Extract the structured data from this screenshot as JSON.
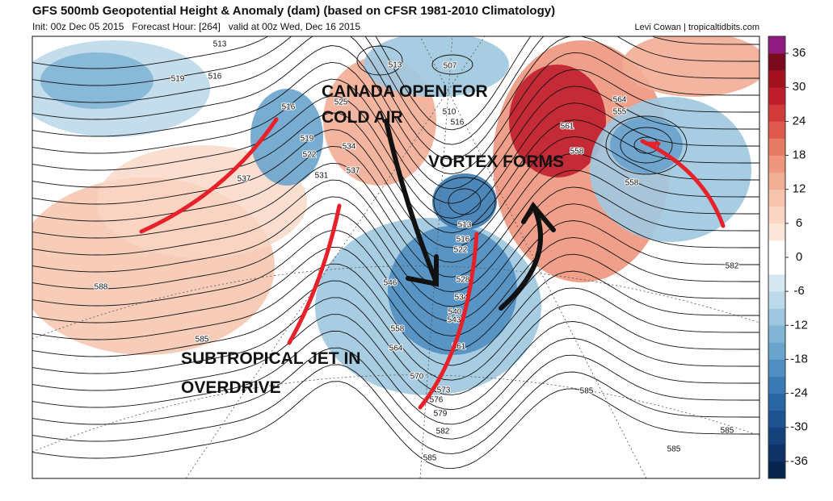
{
  "header": {
    "title": "GFS 500mb Geopotential Height & Anomaly (dam) (based on CFSR 1981-2010 Climatology)",
    "subtitle": "Init: 00z Dec 05 2015   Forecast Hour: [264]   valid at 00z Wed, Dec 16 2015",
    "credit": "Levi Cowan | tropicaltidbits.com"
  },
  "colorbar": {
    "lim": [
      -39,
      39
    ],
    "ticks": [
      36,
      30,
      24,
      18,
      12,
      6,
      0,
      -6,
      -12,
      -18,
      -24,
      -30,
      -36
    ],
    "colors": [
      "#0a2450",
      "#0e3265",
      "#15427b",
      "#1d5390",
      "#2a66a3",
      "#3a7ab3",
      "#4f8fc0",
      "#6aa3cc",
      "#82b5d6",
      "#9fc8e0",
      "#bcd9ea",
      "#d7e8f2",
      "#ffffff",
      "#ffffff",
      "#fbe6da",
      "#f9d6c4",
      "#f6c3ad",
      "#f2ad95",
      "#ee967d",
      "#e77a63",
      "#de5a4e",
      "#d13a3a",
      "#bf1e2d",
      "#a3121f",
      "#7a0a1d",
      "#8e1b80"
    ]
  },
  "contour_labels": [
    513,
    519,
    516,
    516,
    519,
    522,
    531,
    537,
    534,
    537,
    525,
    513,
    507,
    510,
    516,
    513,
    516,
    522,
    528,
    534,
    540,
    543,
    546,
    558,
    564,
    570,
    573,
    576,
    579,
    582,
    585,
    585,
    588,
    561,
    564,
    555,
    558,
    558,
    582,
    585,
    585,
    585,
    561
  ],
  "annotations": [
    "CANADA OPEN FOR",
    "COLD   AIR",
    "VORTEX FORMS",
    "SUBTROPICAL JET IN",
    "OVERDRIVE"
  ]
}
